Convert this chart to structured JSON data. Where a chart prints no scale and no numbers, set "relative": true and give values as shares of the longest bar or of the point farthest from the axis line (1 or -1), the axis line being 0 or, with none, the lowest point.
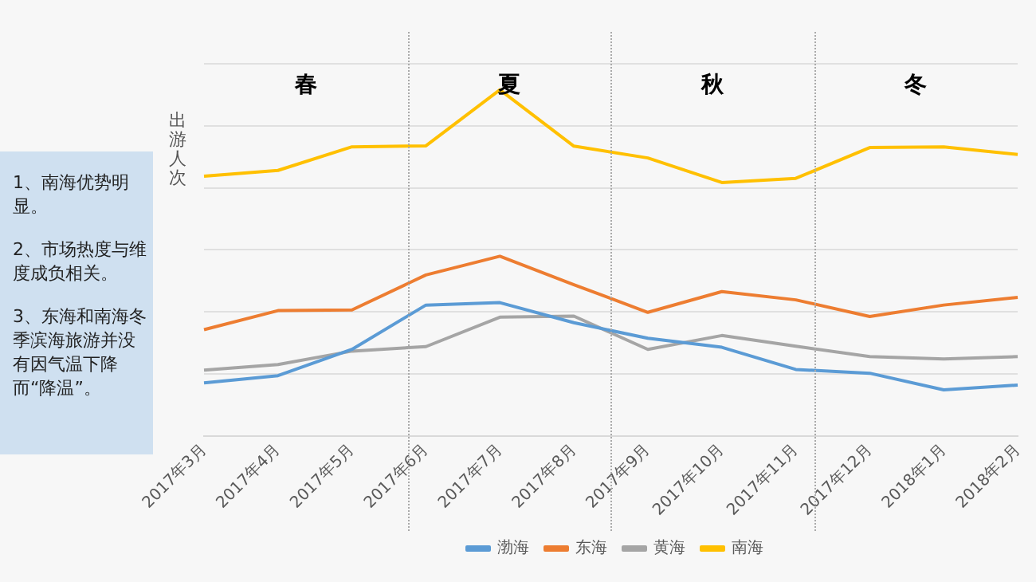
{
  "chart_data": {
    "type": "line",
    "relative": true,
    "ylabel": "出游人次",
    "categories": [
      "2017年3月",
      "2017年4月",
      "2017年5月",
      "2017年6月",
      "2017年7月",
      "2017年8月",
      "2017年9月",
      "2017年10月",
      "2017年11月",
      "2017年12月",
      "2018年1月",
      "2018年2月"
    ],
    "series": [
      {
        "name": "渤海",
        "color": "#5b9bd5",
        "values": [
          0.153,
          0.174,
          0.25,
          0.378,
          0.385,
          0.327,
          0.282,
          0.256,
          0.192,
          0.181,
          0.133,
          0.147
        ]
      },
      {
        "name": "东海",
        "color": "#ed7d31",
        "values": [
          0.307,
          0.362,
          0.364,
          0.465,
          0.519,
          0.437,
          0.357,
          0.417,
          0.393,
          0.345,
          0.378,
          0.4
        ]
      },
      {
        "name": "黄海",
        "color": "#a5a5a5",
        "values": [
          0.19,
          0.206,
          0.245,
          0.258,
          0.343,
          0.346,
          0.25,
          0.29,
          0.259,
          0.229,
          0.222,
          0.229
        ]
      },
      {
        "name": "南海",
        "color": "#ffc000",
        "values": [
          0.75,
          0.767,
          0.835,
          0.838,
          1,
          0.837,
          0.803,
          0.732,
          0.744,
          0.833,
          0.835,
          0.813
        ]
      }
    ],
    "annotations": [
      "春",
      "夏",
      "秋",
      "冬",
      "1、南海优势明显。",
      "2、市场热度与维度成负相关。",
      "3、东海和南海冬季滨海旅游并没有因气温下降而“降温”。"
    ],
    "grid": "y",
    "legend": "bottom",
    "marker": "none",
    "line_style": "solid"
  }
}
